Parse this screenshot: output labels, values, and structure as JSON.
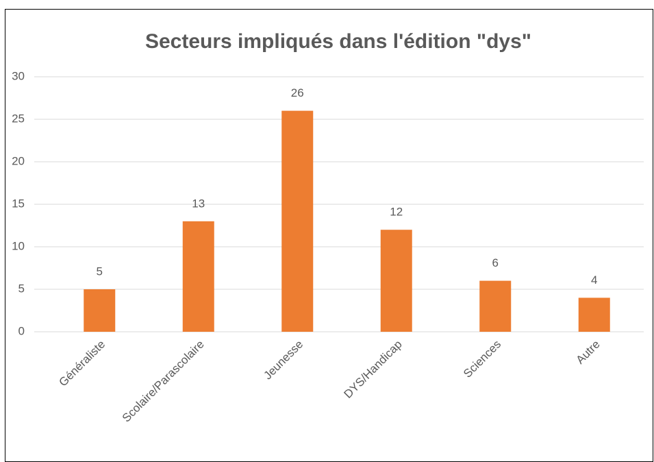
{
  "chart_data": {
    "type": "bar",
    "title": "Secteurs impliqués dans l'édition \"dys\"",
    "categories": [
      "Généraliste",
      "Scolaire/Parascolaire",
      "Jeunesse",
      "DYS/Handicap",
      "Sciences",
      "Autre"
    ],
    "values": [
      5,
      13,
      26,
      12,
      6,
      4
    ],
    "color": "#ed7d31",
    "ylim": [
      0,
      30
    ],
    "yticks": [
      0,
      5,
      10,
      15,
      20,
      25,
      30
    ],
    "grid": true
  }
}
